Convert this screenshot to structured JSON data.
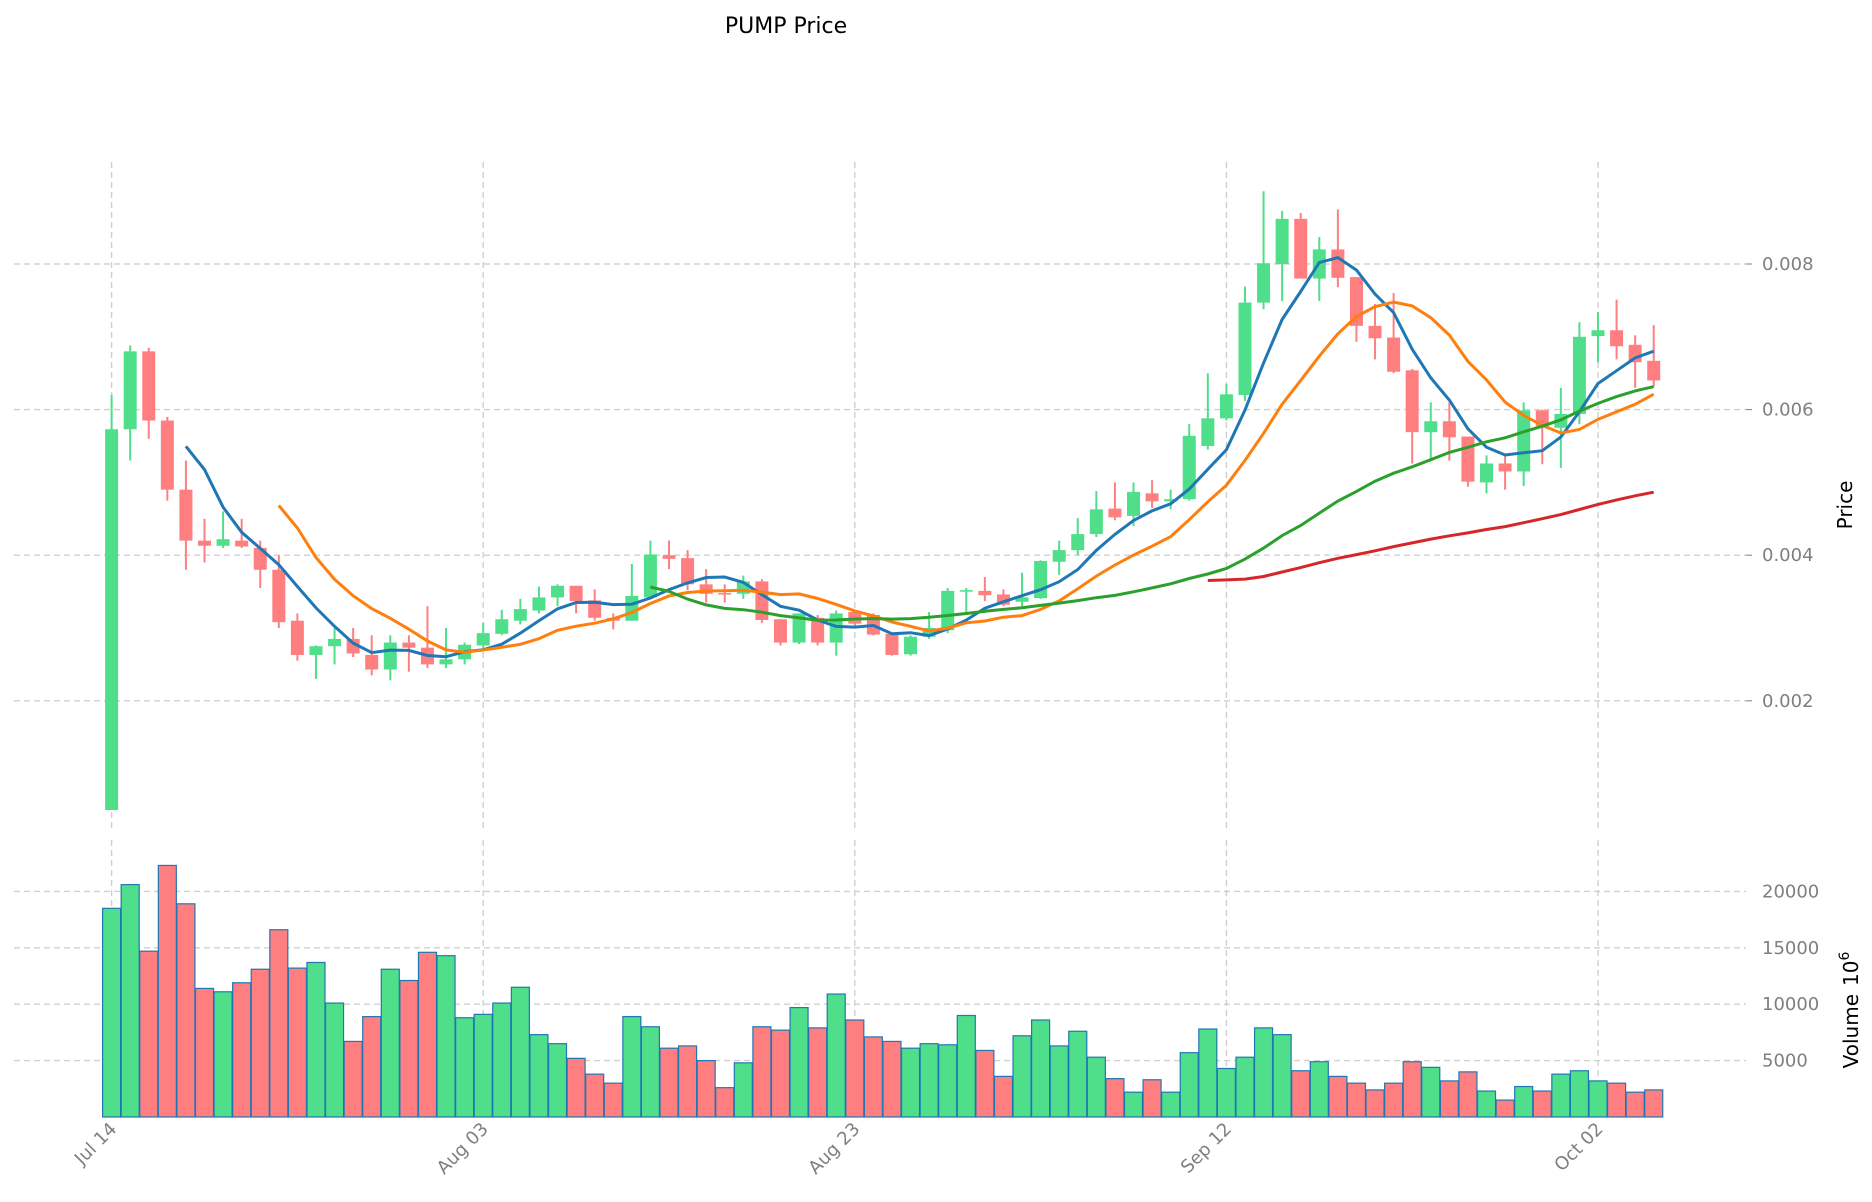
{
  "chart_data": {
    "type": "candlestick",
    "title": "PUMP Price",
    "ylabel": "Price",
    "volume_label": "Volume",
    "volume_multiplier_label": "1e6",
    "volume_multiplier_base": "10",
    "volume_multiplier_exp": "6",
    "start_date": "Jul 14",
    "xtick_labels": [
      "Jul 14",
      "Aug 03",
      "Aug 23",
      "Sep 12",
      "Oct 02"
    ],
    "xtick_day_index": [
      0,
      20,
      40,
      60,
      80
    ],
    "price_ticks": [
      "0.002",
      "0.004",
      "0.006",
      "0.008"
    ],
    "price_ylim": [
      0.0,
      0.0093
    ],
    "volume_ticks": [
      "5000",
      "10000",
      "15000",
      "20000"
    ],
    "volume_ylim": [
      0,
      22500
    ],
    "grid": true,
    "colors": {
      "up": "#4fdf8a",
      "down": "#ff7f81",
      "volume_edge": "#1f77b4"
    },
    "moving_averages": [
      {
        "window": 5,
        "color": "#1f77b4"
      },
      {
        "window": 10,
        "color": "#ff7f0e"
      },
      {
        "window": 30,
        "color": "#2ca02c"
      },
      {
        "window": 60,
        "color": "#d62728"
      }
    ],
    "ohlc": [
      [
        0.0005,
        0.0062,
        0.0005,
        0.00573
      ],
      [
        0.00573,
        0.00688,
        0.0053,
        0.0068
      ],
      [
        0.0068,
        0.00685,
        0.0056,
        0.00585
      ],
      [
        0.00585,
        0.0059,
        0.00475,
        0.0049
      ],
      [
        0.0049,
        0.0053,
        0.0038,
        0.0042
      ],
      [
        0.0042,
        0.0045,
        0.0039,
        0.00413
      ],
      [
        0.00413,
        0.0046,
        0.0041,
        0.00422
      ],
      [
        0.0042,
        0.0045,
        0.0041,
        0.00412
      ],
      [
        0.0041,
        0.0042,
        0.00355,
        0.0038
      ],
      [
        0.0038,
        0.004,
        0.003,
        0.00308
      ],
      [
        0.0031,
        0.0032,
        0.00255,
        0.00263
      ],
      [
        0.00263,
        0.00276,
        0.0023,
        0.00275
      ],
      [
        0.00275,
        0.003,
        0.0025,
        0.00285
      ],
      [
        0.00285,
        0.003,
        0.0026,
        0.00265
      ],
      [
        0.00263,
        0.0029,
        0.00235,
        0.00243
      ],
      [
        0.00243,
        0.0029,
        0.00228,
        0.0028
      ],
      [
        0.0028,
        0.0029,
        0.0024,
        0.00273
      ],
      [
        0.00273,
        0.0033,
        0.00245,
        0.0025
      ],
      [
        0.0025,
        0.003,
        0.00245,
        0.00257
      ],
      [
        0.00257,
        0.0028,
        0.0025,
        0.00277
      ],
      [
        0.00276,
        0.00307,
        0.0027,
        0.00293
      ],
      [
        0.00292,
        0.00325,
        0.0029,
        0.00312
      ],
      [
        0.0031,
        0.0034,
        0.00305,
        0.00326
      ],
      [
        0.00324,
        0.00357,
        0.0032,
        0.00342
      ],
      [
        0.00342,
        0.0036,
        0.0033,
        0.00358
      ],
      [
        0.00358,
        0.00358,
        0.0032,
        0.00337
      ],
      [
        0.00338,
        0.00353,
        0.0031,
        0.00314
      ],
      [
        0.00314,
        0.0032,
        0.00298,
        0.0031
      ],
      [
        0.0031,
        0.00388,
        0.0031,
        0.00344
      ],
      [
        0.00342,
        0.0042,
        0.0034,
        0.00401
      ],
      [
        0.004,
        0.0042,
        0.00381,
        0.00395
      ],
      [
        0.00396,
        0.00407,
        0.00352,
        0.0036
      ],
      [
        0.0036,
        0.00381,
        0.00335,
        0.00347
      ],
      [
        0.00348,
        0.0036,
        0.00335,
        0.00347
      ],
      [
        0.00347,
        0.00372,
        0.0034,
        0.00364
      ],
      [
        0.00364,
        0.00367,
        0.00307,
        0.00311
      ],
      [
        0.00312,
        0.00312,
        0.00276,
        0.0028
      ],
      [
        0.0028,
        0.0032,
        0.00278,
        0.0032
      ],
      [
        0.00314,
        0.00318,
        0.00276,
        0.0028
      ],
      [
        0.0028,
        0.00324,
        0.00262,
        0.0032
      ],
      [
        0.00322,
        0.00325,
        0.003,
        0.00306
      ],
      [
        0.00318,
        0.0032,
        0.0029,
        0.00291
      ],
      [
        0.00292,
        0.00292,
        0.00262,
        0.00263
      ],
      [
        0.00264,
        0.0029,
        0.00262,
        0.00288
      ],
      [
        0.00288,
        0.00322,
        0.00285,
        0.003
      ],
      [
        0.00297,
        0.00355,
        0.00293,
        0.00351
      ],
      [
        0.0035,
        0.00355,
        0.0032,
        0.00352
      ],
      [
        0.00351,
        0.0037,
        0.00337,
        0.00345
      ],
      [
        0.00346,
        0.00353,
        0.0033,
        0.00332
      ],
      [
        0.00336,
        0.00376,
        0.0033,
        0.00342
      ],
      [
        0.00341,
        0.00393,
        0.0034,
        0.00392
      ],
      [
        0.00391,
        0.0042,
        0.00373,
        0.00407
      ],
      [
        0.00407,
        0.00451,
        0.004,
        0.00429
      ],
      [
        0.00429,
        0.00488,
        0.00425,
        0.00463
      ],
      [
        0.00464,
        0.005,
        0.00448,
        0.00452
      ],
      [
        0.00454,
        0.005,
        0.0044,
        0.00487
      ],
      [
        0.00485,
        0.00503,
        0.00465,
        0.00474
      ],
      [
        0.00474,
        0.0049,
        0.00463,
        0.00477
      ],
      [
        0.00477,
        0.0058,
        0.00475,
        0.00564
      ],
      [
        0.0055,
        0.0065,
        0.00545,
        0.00588
      ],
      [
        0.00588,
        0.00635,
        0.00585,
        0.00621
      ],
      [
        0.0062,
        0.00769,
        0.00612,
        0.00747
      ],
      [
        0.00747,
        0.009,
        0.00738,
        0.00801
      ],
      [
        0.008,
        0.00873,
        0.00749,
        0.00862
      ],
      [
        0.00862,
        0.0087,
        0.0078,
        0.0078
      ],
      [
        0.0078,
        0.00837,
        0.00749,
        0.0082
      ],
      [
        0.0082,
        0.00875,
        0.00768,
        0.00781
      ],
      [
        0.00782,
        0.00782,
        0.00693,
        0.00715
      ],
      [
        0.00715,
        0.00745,
        0.00669,
        0.00698
      ],
      [
        0.00699,
        0.0076,
        0.0065,
        0.00652
      ],
      [
        0.00654,
        0.00656,
        0.00526,
        0.00569
      ],
      [
        0.00569,
        0.0061,
        0.00532,
        0.00584
      ],
      [
        0.00584,
        0.0061,
        0.0053,
        0.00562
      ],
      [
        0.00563,
        0.00563,
        0.00494,
        0.00501
      ],
      [
        0.005,
        0.00537,
        0.00485,
        0.00526
      ],
      [
        0.00526,
        0.00538,
        0.0049,
        0.00515
      ],
      [
        0.00515,
        0.0061,
        0.00495,
        0.00599
      ],
      [
        0.00599,
        0.006,
        0.00525,
        0.00577
      ],
      [
        0.00575,
        0.0063,
        0.0052,
        0.00594
      ],
      [
        0.00594,
        0.0072,
        0.0058,
        0.007
      ],
      [
        0.00701,
        0.00734,
        0.00665,
        0.00709
      ],
      [
        0.00709,
        0.00751,
        0.00669,
        0.00687
      ],
      [
        0.00689,
        0.00702,
        0.0063,
        0.00665
      ],
      [
        0.00667,
        0.00716,
        0.00632,
        0.0064
      ]
    ],
    "volume": [
      18500,
      20600,
      14700,
      22300,
      18900,
      11400,
      11100,
      11900,
      13100,
      16600,
      13200,
      13700,
      10100,
      6700,
      8900,
      13100,
      12100,
      14600,
      14300,
      8800,
      9100,
      10100,
      11500,
      7300,
      6500,
      5200,
      3800,
      3000,
      8900,
      8000,
      6100,
      6300,
      5000,
      2600,
      4800,
      8000,
      7700,
      9700,
      7900,
      10900,
      8600,
      7100,
      6700,
      6100,
      6500,
      6400,
      9000,
      5900,
      3600,
      7200,
      8600,
      6300,
      7600,
      5300,
      3400,
      2200,
      3300,
      2200,
      5700,
      7800,
      4300,
      5300,
      7900,
      7300,
      4100,
      4900,
      3600,
      3000,
      2400,
      3000,
      4900,
      4400,
      3200,
      4000,
      2300,
      1500,
      2700,
      2300,
      3800,
      4100,
      3200,
      3000,
      2200,
      2400
    ]
  }
}
